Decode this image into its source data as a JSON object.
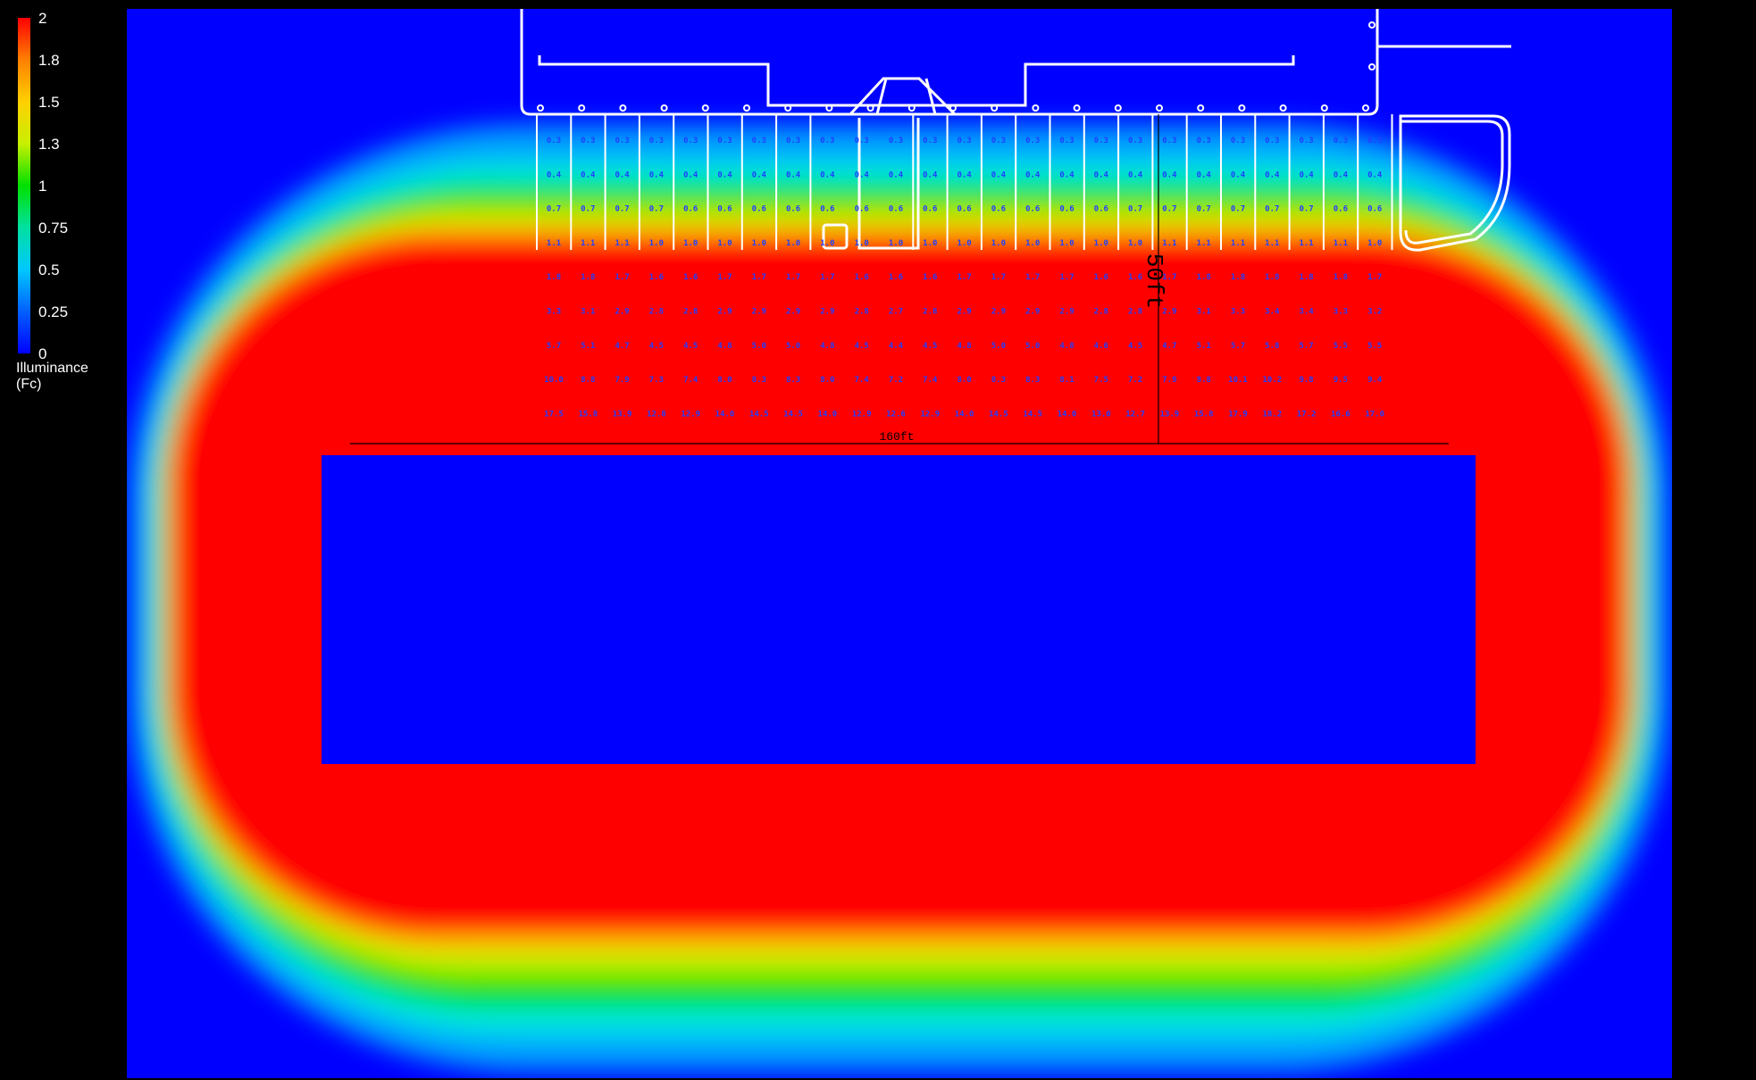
{
  "legend": {
    "title_line1": "Illuminance",
    "title_line2": "(Fc)",
    "ticks": [
      "2",
      "1.8",
      "1.5",
      "1.3",
      "1",
      "0.75",
      "0.5",
      "0.25",
      "0"
    ]
  },
  "dimensions": {
    "horizontal_label": "160ft",
    "vertical_label": "50ft"
  },
  "calc_grid": {
    "rows": [
      [
        "0.3",
        "0.3",
        "0.3",
        "0.3",
        "0.3",
        "0.3",
        "0.3",
        "0.3",
        "0.3",
        "0.3",
        "0.3",
        "0.3",
        "0.3",
        "0.3",
        "0.3",
        "0.3",
        "0.3",
        "0.3",
        "0.3",
        "0.3",
        "0.3",
        "0.3",
        "0.3",
        "0.3",
        "0.3"
      ],
      [
        "0.4",
        "0.4",
        "0.4",
        "0.4",
        "0.4",
        "0.4",
        "0.4",
        "0.4",
        "0.4",
        "0.4",
        "0.4",
        "0.4",
        "0.4",
        "0.4",
        "0.4",
        "0.4",
        "0.4",
        "0.4",
        "0.4",
        "0.4",
        "0.4",
        "0.4",
        "0.4",
        "0.4",
        "0.4"
      ],
      [
        "0.7",
        "0.7",
        "0.7",
        "0.7",
        "0.6",
        "0.6",
        "0.6",
        "0.6",
        "0.6",
        "0.6",
        "0.6",
        "0.6",
        "0.6",
        "0.6",
        "0.6",
        "0.6",
        "0.6",
        "0.7",
        "0.7",
        "0.7",
        "0.7",
        "0.7",
        "0.7",
        "0.6",
        "0.6"
      ],
      [
        "1.1",
        "1.1",
        "1.1",
        "1.0",
        "1.0",
        "1.0",
        "1.0",
        "1.0",
        "1.0",
        "1.0",
        "1.0",
        "1.0",
        "1.0",
        "1.0",
        "1.0",
        "1.0",
        "1.0",
        "1.0",
        "1.1",
        "1.1",
        "1.1",
        "1.1",
        "1.1",
        "1.1",
        "1.0"
      ],
      [
        "1.8",
        "1.8",
        "1.7",
        "1.6",
        "1.6",
        "1.7",
        "1.7",
        "1.7",
        "1.7",
        "1.6",
        "1.6",
        "1.6",
        "1.7",
        "1.7",
        "1.7",
        "1.7",
        "1.6",
        "1.6",
        "1.7",
        "1.8",
        "1.8",
        "1.8",
        "1.8",
        "1.8",
        "1.7"
      ],
      [
        "3.3",
        "3.1",
        "2.9",
        "2.8",
        "2.8",
        "2.9",
        "2.9",
        "2.9",
        "2.9",
        "2.8",
        "2.7",
        "2.8",
        "2.9",
        "2.9",
        "2.9",
        "2.9",
        "2.8",
        "2.8",
        "2.9",
        "3.1",
        "3.3",
        "3.4",
        "3.4",
        "3.3",
        "3.2"
      ],
      [
        "5.7",
        "5.1",
        "4.7",
        "4.5",
        "4.5",
        "4.8",
        "5.0",
        "5.0",
        "4.8",
        "4.5",
        "4.4",
        "4.5",
        "4.8",
        "5.0",
        "5.0",
        "4.8",
        "4.6",
        "4.5",
        "4.7",
        "5.1",
        "5.7",
        "5.8",
        "5.7",
        "5.5",
        "5.5"
      ],
      [
        "10.0",
        "8.8",
        "7.9",
        "7.3",
        "7.4",
        "8.0",
        "8.3",
        "8.3",
        "8.0",
        "7.4",
        "7.2",
        "7.4",
        "8.0",
        "8.3",
        "8.3",
        "8.1",
        "7.5",
        "7.2",
        "7.9",
        "8.8",
        "10.1",
        "10.2",
        "9.8",
        "9.5",
        "9.4"
      ],
      [
        "17.5",
        "15.8",
        "13.9",
        "12.8",
        "12.9",
        "14.0",
        "14.5",
        "14.5",
        "14.0",
        "12.9",
        "12.6",
        "12.9",
        "14.0",
        "14.5",
        "14.5",
        "14.0",
        "13.0",
        "12.7",
        "13.9",
        "15.8",
        "17.9",
        "18.2",
        "17.2",
        "16.6",
        "17.0"
      ]
    ]
  },
  "colors": {
    "scale_max": "#ff0000",
    "scale_min": "#0000ff",
    "overlay_lines": "#ffffff",
    "grid_text": "#2040ff"
  }
}
